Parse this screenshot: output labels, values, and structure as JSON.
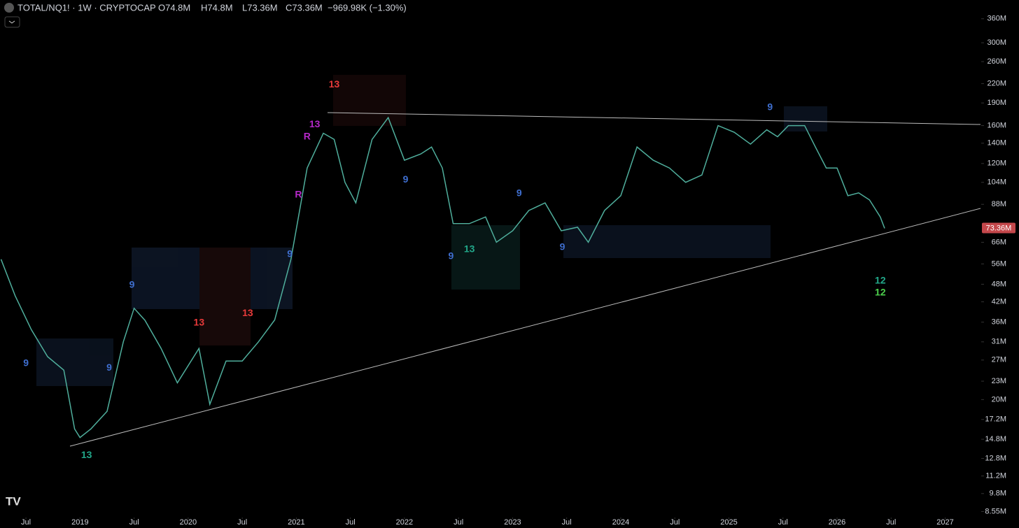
{
  "header": {
    "symbol": "TOTAL/NQ1! · 1W · CRYPTOCAP",
    "open": "O74.8M",
    "high": "H74.8M",
    "low": "L73.36M",
    "close": "C73.36M",
    "change": "−969.98K (−1.30%)"
  },
  "chart_data": {
    "type": "line",
    "log_scale": true,
    "color": "#4fae9c",
    "x": [
      2018.27,
      2018.4,
      2018.55,
      2018.7,
      2018.85,
      2018.95,
      2019.0,
      2019.1,
      2019.25,
      2019.4,
      2019.5,
      2019.6,
      2019.75,
      2019.9,
      2020.1,
      2020.2,
      2020.35,
      2020.5,
      2020.65,
      2020.8,
      2020.95,
      2021.1,
      2021.25,
      2021.35,
      2021.45,
      2021.55,
      2021.7,
      2021.85,
      2022.0,
      2022.15,
      2022.25,
      2022.35,
      2022.45,
      2022.6,
      2022.75,
      2022.85,
      2023.0,
      2023.15,
      2023.3,
      2023.45,
      2023.6,
      2023.7,
      2023.85,
      2024.0,
      2024.15,
      2024.3,
      2024.45,
      2024.6,
      2024.75,
      2024.9,
      2025.05,
      2025.2,
      2025.35,
      2025.45,
      2025.55,
      2025.7,
      2025.8,
      2025.9,
      2026.0,
      2026.1,
      2026.2,
      2026.3,
      2026.4,
      2026.44
    ],
    "values": [
      58,
      44,
      34,
      27.7,
      25,
      16,
      15,
      16,
      18.3,
      31,
      40,
      36.5,
      29.5,
      22.7,
      29.5,
      19.3,
      26.8,
      26.8,
      31,
      36.6,
      58,
      116,
      151,
      144,
      104,
      89,
      144,
      170,
      123,
      129,
      136,
      116,
      76,
      76,
      80,
      66,
      72,
      84,
      89,
      72,
      74,
      66,
      84,
      94,
      136,
      123,
      116,
      104,
      110,
      160,
      152,
      139,
      155,
      147,
      160,
      160,
      136,
      116,
      116,
      94,
      96,
      91,
      80,
      73.36
    ],
    "last_price": {
      "value": 73.36,
      "label": "73.36M"
    },
    "xlim": [
      2018.26,
      2027.32
    ],
    "ylim": [
      8.26,
      415
    ],
    "xticks": [
      {
        "value": 2018.5,
        "label": "Jul"
      },
      2019,
      {
        "value": 2019.5,
        "label": "Jul"
      },
      2020,
      {
        "value": 2020.5,
        "label": "Jul"
      },
      2021,
      {
        "value": 2021.5,
        "label": "Jul"
      },
      2022,
      {
        "value": 2022.5,
        "label": "Jul"
      },
      2023,
      {
        "value": 2023.5,
        "label": "Jul"
      },
      2024,
      {
        "value": 2024.5,
        "label": "Jul"
      },
      2025,
      {
        "value": 2025.5,
        "label": "Jul"
      },
      2026,
      {
        "value": 2026.5,
        "label": "Jul"
      },
      2027
    ],
    "yticks": [
      {
        "value": 360,
        "label": "360M"
      },
      {
        "value": 300,
        "label": "300M"
      },
      {
        "value": 260,
        "label": "260M"
      },
      {
        "value": 220,
        "label": "220M"
      },
      {
        "value": 190,
        "label": "190M"
      },
      {
        "value": 160,
        "label": "160M"
      },
      {
        "value": 140,
        "label": "140M"
      },
      {
        "value": 120,
        "label": "120M"
      },
      {
        "value": 104,
        "label": "104M"
      },
      {
        "value": 88,
        "label": "88M"
      },
      {
        "value": 66,
        "label": "66M"
      },
      {
        "value": 56,
        "label": "56M"
      },
      {
        "value": 48,
        "label": "48M"
      },
      {
        "value": 42,
        "label": "42M"
      },
      {
        "value": 36,
        "label": "36M"
      },
      {
        "value": 31,
        "label": "31M"
      },
      {
        "value": 27,
        "label": "27M"
      },
      {
        "value": 23,
        "label": "23M"
      },
      {
        "value": 20,
        "label": "20M"
      },
      {
        "value": 17.2,
        "label": "17.2M"
      },
      {
        "value": 14.8,
        "label": "14.8M"
      },
      {
        "value": 12.8,
        "label": "12.8M"
      },
      {
        "value": 11.2,
        "label": "11.2M"
      },
      {
        "value": 9.8,
        "label": "9.8M"
      },
      {
        "value": 8.55,
        "label": "8.55M"
      }
    ],
    "annotations": [
      {
        "text": "13",
        "x": 2019.06,
        "y": 13.1,
        "color": "#22a88a"
      },
      {
        "text": "9",
        "x": 2018.5,
        "y": 26.3,
        "color": "#3f6fd0"
      },
      {
        "text": "9",
        "x": 2019.27,
        "y": 25.4,
        "color": "#3f6fd0"
      },
      {
        "text": "9",
        "x": 2019.48,
        "y": 47.7,
        "color": "#3f6fd0"
      },
      {
        "text": "13",
        "x": 2020.1,
        "y": 35.8,
        "color": "#e83a3a"
      },
      {
        "text": "13",
        "x": 2020.55,
        "y": 38.4,
        "color": "#e83a3a"
      },
      {
        "text": "9",
        "x": 2020.94,
        "y": 60.2,
        "color": "#3f6fd0"
      },
      {
        "text": "R",
        "x": 2021.02,
        "y": 94.6,
        "color": "#b528c8"
      },
      {
        "text": "R",
        "x": 2021.1,
        "y": 147,
        "color": "#b528c8"
      },
      {
        "text": "13",
        "x": 2021.17,
        "y": 161,
        "color": "#b528c8"
      },
      {
        "text": "13",
        "x": 2021.35,
        "y": 218,
        "color": "#e83a3a"
      },
      {
        "text": "9",
        "x": 2022.01,
        "y": 106,
        "color": "#3f6fd0"
      },
      {
        "text": "9",
        "x": 2022.43,
        "y": 59.3,
        "color": "#3f6fd0"
      },
      {
        "text": "13",
        "x": 2022.6,
        "y": 62.5,
        "color": "#22a88a"
      },
      {
        "text": "9",
        "x": 2023.06,
        "y": 95.6,
        "color": "#3f6fd0"
      },
      {
        "text": "9",
        "x": 2023.46,
        "y": 63.5,
        "color": "#3f6fd0"
      },
      {
        "text": "9",
        "x": 2025.38,
        "y": 183.5,
        "color": "#3f6fd0"
      },
      {
        "text": "12",
        "x": 2026.4,
        "y": 49.2,
        "color": "#22a88a"
      },
      {
        "text": "12",
        "x": 2026.4,
        "y": 45,
        "color": "#4cd04c"
      }
    ]
  }
}
